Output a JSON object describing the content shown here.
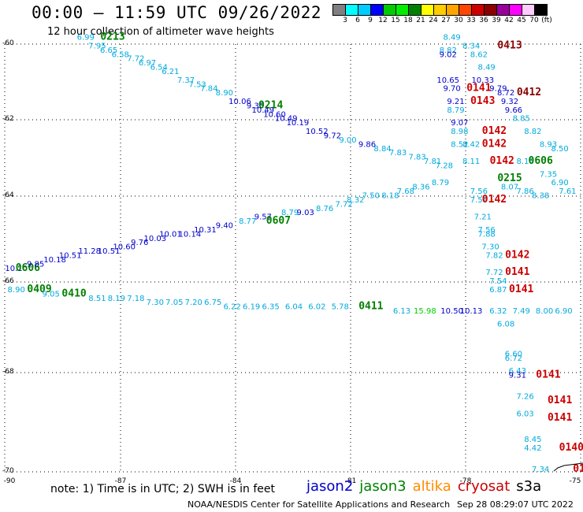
{
  "title": "00:00 – 11:59 UTC 09/26/2022",
  "subtitle": "12 hour collection of altimeter wave heights",
  "legend": {
    "colors": [
      "#808080",
      "#00ffff",
      "#00ccff",
      "#0000ff",
      "#00cc00",
      "#00ee00",
      "#008000",
      "#ffff00",
      "#ffcc00",
      "#ffa500",
      "#ff4500",
      "#cc0000",
      "#8b0000",
      "#990099",
      "#ff00ff",
      "#ffccff",
      "#000000"
    ],
    "labels": [
      "3",
      "6",
      "9",
      "12",
      "15",
      "18",
      "21",
      "24",
      "27",
      "30",
      "33",
      "36",
      "39",
      "42",
      "45",
      "70",
      "(ft)"
    ]
  },
  "axes": {
    "y_labels": [
      "-60",
      "-62",
      "-64",
      "-66",
      "-68",
      "-70"
    ],
    "x_labels": [
      "-90",
      "-87",
      "-84",
      "-81",
      "-78",
      "-75"
    ]
  },
  "note": "note: 1) Time is in UTC; 2) SWH is in feet",
  "satellites": [
    {
      "name": "jason2",
      "color": "#0000cc"
    },
    {
      "name": "jason3",
      "color": "#008000"
    },
    {
      "name": "altika",
      "color": "#ff8c00"
    },
    {
      "name": "cryosat",
      "color": "#cc0000"
    },
    {
      "name": "s3a",
      "color": "#000000"
    }
  ],
  "credit": "NOAA/NESDIS Center for Satellite Applications and Research",
  "credit_date": "Sep 28 08:29:07 UTC 2022",
  "observations": [
    {
      "text": "6.99",
      "lon": -87.9,
      "lat": -59.9,
      "color": "#00aadd"
    },
    {
      "text": "0213",
      "lon": -87.2,
      "lat": -59.9,
      "color": "#008000",
      "bold": true
    },
    {
      "text": "7.95",
      "lon": -87.6,
      "lat": -60.1,
      "color": "#00aadd"
    },
    {
      "text": "6.65",
      "lon": -87.3,
      "lat": -60.2,
      "color": "#00aadd"
    },
    {
      "text": "6.58",
      "lon": -87.0,
      "lat": -60.3,
      "color": "#00aadd"
    },
    {
      "text": "7.72",
      "lon": -86.6,
      "lat": -60.4,
      "color": "#00aadd"
    },
    {
      "text": "6.97",
      "lon": -86.3,
      "lat": -60.5,
      "color": "#00aadd"
    },
    {
      "text": "6.54",
      "lon": -86.0,
      "lat": -60.6,
      "color": "#00aadd"
    },
    {
      "text": "6.21",
      "lon": -85.7,
      "lat": -60.7,
      "color": "#00aadd"
    },
    {
      "text": "7.37",
      "lon": -85.3,
      "lat": -60.9,
      "color": "#00aadd"
    },
    {
      "text": "7.53",
      "lon": -85.0,
      "lat": -61.0,
      "color": "#00aadd"
    },
    {
      "text": "7.84",
      "lon": -84.7,
      "lat": -61.1,
      "color": "#00aadd"
    },
    {
      "text": "8.90",
      "lon": -84.3,
      "lat": -61.2,
      "color": "#00aadd"
    },
    {
      "text": "10.06",
      "lon": -83.9,
      "lat": -61.4,
      "color": "#0000cc"
    },
    {
      "text": "9.35",
      "lon": -83.5,
      "lat": -61.5,
      "color": "#0000cc"
    },
    {
      "text": "0214",
      "lon": -83.1,
      "lat": -61.5,
      "color": "#008000",
      "bold": true
    },
    {
      "text": "10.49",
      "lon": -83.3,
      "lat": -61.6,
      "color": "#0000cc"
    },
    {
      "text": "10.60",
      "lon": -83.0,
      "lat": -61.7,
      "color": "#0000cc"
    },
    {
      "text": "10.49",
      "lon": -82.7,
      "lat": -61.8,
      "color": "#0000cc"
    },
    {
      "text": "10.19",
      "lon": -82.4,
      "lat": -61.9,
      "color": "#0000cc"
    },
    {
      "text": "10.52",
      "lon": -81.9,
      "lat": -62.1,
      "color": "#0000cc"
    },
    {
      "text": "9.72",
      "lon": -81.5,
      "lat": -62.2,
      "color": "#0000cc"
    },
    {
      "text": "9.00",
      "lon": -81.1,
      "lat": -62.3,
      "color": "#00aadd"
    },
    {
      "text": "9.86",
      "lon": -80.6,
      "lat": -62.4,
      "color": "#0000cc"
    },
    {
      "text": "8.84",
      "lon": -80.2,
      "lat": -62.5,
      "color": "#00aadd"
    },
    {
      "text": "7.83",
      "lon": -79.8,
      "lat": -62.6,
      "color": "#00aadd"
    },
    {
      "text": "7.83",
      "lon": -79.3,
      "lat": -62.7,
      "color": "#00aadd"
    },
    {
      "text": "7.81",
      "lon": -78.9,
      "lat": -62.8,
      "color": "#00aadd"
    },
    {
      "text": "7.28",
      "lon": -78.6,
      "lat": -62.9,
      "color": "#00aadd"
    },
    {
      "text": "8.49",
      "lon": -78.4,
      "lat": -59.9,
      "color": "#00aadd"
    },
    {
      "text": "8.82",
      "lon": -78.5,
      "lat": -60.2,
      "color": "#00aadd"
    },
    {
      "text": "9.02",
      "lon": -78.5,
      "lat": -60.3,
      "color": "#0000cc"
    },
    {
      "text": "8.34",
      "lon": -77.9,
      "lat": -60.1,
      "color": "#00aadd"
    },
    {
      "text": "0413",
      "lon": -76.9,
      "lat": -60.1,
      "color": "#8b0000",
      "bold": true
    },
    {
      "text": "8.62",
      "lon": -77.7,
      "lat": -60.3,
      "color": "#00aadd"
    },
    {
      "text": "8.49",
      "lon": -77.5,
      "lat": -60.6,
      "color": "#00aadd"
    },
    {
      "text": "10.65",
      "lon": -78.5,
      "lat": -60.9,
      "color": "#0000cc"
    },
    {
      "text": "10.33",
      "lon": -77.6,
      "lat": -60.9,
      "color": "#0000cc"
    },
    {
      "text": "9.70",
      "lon": -78.4,
      "lat": -61.1,
      "color": "#0000cc"
    },
    {
      "text": "0141",
      "lon": -77.7,
      "lat": -61.1,
      "color": "#cc0000",
      "bold": true
    },
    {
      "text": "9.79",
      "lon": -77.2,
      "lat": -61.1,
      "color": "#0000cc"
    },
    {
      "text": "8.72",
      "lon": -77.0,
      "lat": -61.2,
      "color": "#0000cc"
    },
    {
      "text": "0412",
      "lon": -76.4,
      "lat": -61.2,
      "color": "#8b0000",
      "bold": true
    },
    {
      "text": "9.21",
      "lon": -78.3,
      "lat": -61.4,
      "color": "#0000cc"
    },
    {
      "text": "0143",
      "lon": -77.6,
      "lat": -61.4,
      "color": "#cc0000",
      "bold": true
    },
    {
      "text": "9.32",
      "lon": -76.9,
      "lat": -61.4,
      "color": "#0000cc"
    },
    {
      "text": "8.79",
      "lon": -78.3,
      "lat": -61.6,
      "color": "#00aadd"
    },
    {
      "text": "9.66",
      "lon": -76.8,
      "lat": -61.6,
      "color": "#0000cc"
    },
    {
      "text": "8.85",
      "lon": -76.6,
      "lat": -61.8,
      "color": "#00aadd"
    },
    {
      "text": "9.07",
      "lon": -78.2,
      "lat": -61.9,
      "color": "#0000cc"
    },
    {
      "text": "8.98",
      "lon": -78.2,
      "lat": -62.1,
      "color": "#00aadd"
    },
    {
      "text": "0142",
      "lon": -77.3,
      "lat": -62.1,
      "color": "#cc0000",
      "bold": true
    },
    {
      "text": "8.82",
      "lon": -76.3,
      "lat": -62.1,
      "color": "#00aadd"
    },
    {
      "text": "8.52",
      "lon": -78.2,
      "lat": -62.4,
      "color": "#00aadd"
    },
    {
      "text": "8.42",
      "lon": -77.9,
      "lat": -62.4,
      "color": "#00aadd"
    },
    {
      "text": "0142",
      "lon": -77.3,
      "lat": -62.4,
      "color": "#cc0000",
      "bold": true
    },
    {
      "text": "8.93",
      "lon": -75.9,
      "lat": -62.4,
      "color": "#00aadd"
    },
    {
      "text": "8.50",
      "lon": -75.6,
      "lat": -62.5,
      "color": "#00aadd"
    },
    {
      "text": "8.11",
      "lon": -77.9,
      "lat": -62.8,
      "color": "#00aadd"
    },
    {
      "text": "0142",
      "lon": -77.1,
      "lat": -62.8,
      "color": "#cc0000",
      "bold": true
    },
    {
      "text": "8.16",
      "lon": -76.5,
      "lat": -62.8,
      "color": "#00aadd"
    },
    {
      "text": "0606",
      "lon": -76.1,
      "lat": -62.8,
      "color": "#008000",
      "bold": true
    },
    {
      "text": "7.35",
      "lon": -75.9,
      "lat": -63.1,
      "color": "#00aadd"
    },
    {
      "text": "0215",
      "lon": -76.9,
      "lat": -63.2,
      "color": "#008000",
      "bold": true
    },
    {
      "text": "6.90",
      "lon": -75.6,
      "lat": -63.3,
      "color": "#00aadd"
    },
    {
      "text": "7.56",
      "lon": -77.7,
      "lat": -63.5,
      "color": "#00aadd"
    },
    {
      "text": "8.07",
      "lon": -76.9,
      "lat": -63.4,
      "color": "#00aadd"
    },
    {
      "text": "7.86",
      "lon": -76.5,
      "lat": -63.5,
      "color": "#00aadd"
    },
    {
      "text": "8.38",
      "lon": -76.1,
      "lat": -63.6,
      "color": "#00aadd"
    },
    {
      "text": "7.61",
      "lon": -75.4,
      "lat": -63.5,
      "color": "#00aadd"
    },
    {
      "text": "7.59",
      "lon": -77.7,
      "lat": -63.7,
      "color": "#00aadd"
    },
    {
      "text": "0142",
      "lon": -77.3,
      "lat": -63.7,
      "color": "#cc0000",
      "bold": true
    },
    {
      "text": "7.21",
      "lon": -77.6,
      "lat": -64.1,
      "color": "#00aadd"
    },
    {
      "text": "7.56",
      "lon": -77.5,
      "lat": -64.4,
      "color": "#00aadd"
    },
    {
      "text": "7.88",
      "lon": -77.5,
      "lat": -64.5,
      "color": "#00aadd"
    },
    {
      "text": "7.30",
      "lon": -77.4,
      "lat": -64.8,
      "color": "#00aadd"
    },
    {
      "text": "7.82",
      "lon": -77.3,
      "lat": -65.0,
      "color": "#00aadd"
    },
    {
      "text": "0142",
      "lon": -76.7,
      "lat": -65.0,
      "color": "#cc0000",
      "bold": true
    },
    {
      "text": "7.72",
      "lon": -77.3,
      "lat": -65.4,
      "color": "#00aadd"
    },
    {
      "text": "0141",
      "lon": -76.7,
      "lat": -65.4,
      "color": "#cc0000",
      "bold": true
    },
    {
      "text": "7.54",
      "lon": -77.2,
      "lat": -65.6,
      "color": "#00aadd"
    },
    {
      "text": "6.87",
      "lon": -77.2,
      "lat": -65.8,
      "color": "#00aadd"
    },
    {
      "text": "0141",
      "lon": -76.6,
      "lat": -65.8,
      "color": "#cc0000",
      "bold": true
    },
    {
      "text": "10.10",
      "lon": -89.7,
      "lat": -65.3,
      "color": "#0000cc"
    },
    {
      "text": "0606",
      "lon": -89.4,
      "lat": -65.3,
      "color": "#008000",
      "bold": true
    },
    {
      "text": "9.85",
      "lon": -89.2,
      "lat": -65.2,
      "color": "#0000cc"
    },
    {
      "text": "10.18",
      "lon": -88.7,
      "lat": -65.1,
      "color": "#0000cc"
    },
    {
      "text": "10.51",
      "lon": -88.3,
      "lat": -65.0,
      "color": "#0000cc"
    },
    {
      "text": "11.28",
      "lon": -87.8,
      "lat": -64.9,
      "color": "#0000cc"
    },
    {
      "text": "10.51",
      "lon": -87.3,
      "lat": -64.9,
      "color": "#0000cc"
    },
    {
      "text": "10.60",
      "lon": -86.9,
      "lat": -64.8,
      "color": "#0000cc"
    },
    {
      "text": "9.76",
      "lon": -86.5,
      "lat": -64.7,
      "color": "#0000cc"
    },
    {
      "text": "10.03",
      "lon": -86.1,
      "lat": -64.6,
      "color": "#0000cc"
    },
    {
      "text": "10.01",
      "lon": -85.7,
      "lat": -64.5,
      "color": "#0000cc"
    },
    {
      "text": "10.14",
      "lon": -85.2,
      "lat": -64.5,
      "color": "#0000cc"
    },
    {
      "text": "10.31",
      "lon": -84.8,
      "lat": -64.4,
      "color": "#0000cc"
    },
    {
      "text": "9.40",
      "lon": -84.3,
      "lat": -64.3,
      "color": "#0000cc"
    },
    {
      "text": "8.77",
      "lon": -83.7,
      "lat": -64.2,
      "color": "#00aadd"
    },
    {
      "text": "9.57",
      "lon": -83.3,
      "lat": -64.1,
      "color": "#0000cc"
    },
    {
      "text": "0607",
      "lon": -82.9,
      "lat": -64.2,
      "color": "#008000",
      "bold": true
    },
    {
      "text": "8.79",
      "lon": -82.6,
      "lat": -64.0,
      "color": "#00aadd"
    },
    {
      "text": "9.03",
      "lon": -82.2,
      "lat": -64.0,
      "color": "#0000cc"
    },
    {
      "text": "8.76",
      "lon": -81.7,
      "lat": -63.9,
      "color": "#00aadd"
    },
    {
      "text": "7.72",
      "lon": -81.2,
      "lat": -63.8,
      "color": "#00aadd"
    },
    {
      "text": "8.32",
      "lon": -80.9,
      "lat": -63.7,
      "color": "#00aadd"
    },
    {
      "text": "7.50",
      "lon": -80.5,
      "lat": -63.6,
      "color": "#00aadd"
    },
    {
      "text": "8.18",
      "lon": -80.0,
      "lat": -63.6,
      "color": "#00aadd"
    },
    {
      "text": "7.68",
      "lon": -79.6,
      "lat": -63.5,
      "color": "#00aadd"
    },
    {
      "text": "8.36",
      "lon": -79.2,
      "lat": -63.4,
      "color": "#00aadd"
    },
    {
      "text": "8.79",
      "lon": -78.7,
      "lat": -63.3,
      "color": "#00aadd"
    },
    {
      "text": "8.90",
      "lon": -89.7,
      "lat": -65.8,
      "color": "#00aadd"
    },
    {
      "text": "0409",
      "lon": -89.1,
      "lat": -65.8,
      "color": "#008000",
      "bold": true
    },
    {
      "text": "9.05",
      "lon": -88.8,
      "lat": -65.9,
      "color": "#00aadd"
    },
    {
      "text": "0410",
      "lon": -88.2,
      "lat": -65.9,
      "color": "#008000",
      "bold": true
    },
    {
      "text": "8.51",
      "lon": -87.6,
      "lat": -66.0,
      "color": "#00aadd"
    },
    {
      "text": "8.19",
      "lon": -87.1,
      "lat": -66.0,
      "color": "#00aadd"
    },
    {
      "text": "7.18",
      "lon": -86.6,
      "lat": -66.0,
      "color": "#00aadd"
    },
    {
      "text": "7.30",
      "lon": -86.1,
      "lat": -66.1,
      "color": "#00aadd"
    },
    {
      "text": "7.05",
      "lon": -85.6,
      "lat": -66.1,
      "color": "#00aadd"
    },
    {
      "text": "7.20",
      "lon": -85.1,
      "lat": -66.1,
      "color": "#00aadd"
    },
    {
      "text": "6.75",
      "lon": -84.6,
      "lat": -66.1,
      "color": "#00aadd"
    },
    {
      "text": "6.22",
      "lon": -84.1,
      "lat": -66.2,
      "color": "#00aadd"
    },
    {
      "text": "6.19",
      "lon": -83.6,
      "lat": -66.2,
      "color": "#00aadd"
    },
    {
      "text": "6.35",
      "lon": -83.1,
      "lat": -66.2,
      "color": "#00aadd"
    },
    {
      "text": "6.04",
      "lon": -82.5,
      "lat": -66.2,
      "color": "#00aadd"
    },
    {
      "text": "6.02",
      "lon": -81.9,
      "lat": -66.2,
      "color": "#00aadd"
    },
    {
      "text": "5.78",
      "lon": -81.3,
      "lat": -66.2,
      "color": "#00aadd"
    },
    {
      "text": "0411",
      "lon": -80.5,
      "lat": -66.2,
      "color": "#008000",
      "bold": true
    },
    {
      "text": "6.13",
      "lon": -79.7,
      "lat": -66.3,
      "color": "#00aadd"
    },
    {
      "text": "15.98",
      "lon": -79.1,
      "lat": -66.3,
      "color": "#00cc00"
    },
    {
      "text": "10.50",
      "lon": -78.4,
      "lat": -66.3,
      "color": "#0000cc"
    },
    {
      "text": "10.13",
      "lon": -77.9,
      "lat": -66.3,
      "color": "#0000cc"
    },
    {
      "text": "6.32",
      "lon": -77.2,
      "lat": -66.3,
      "color": "#00aadd"
    },
    {
      "text": "7.49",
      "lon": -76.6,
      "lat": -66.3,
      "color": "#00aadd"
    },
    {
      "text": "8.00",
      "lon": -76.0,
      "lat": -66.3,
      "color": "#00aadd"
    },
    {
      "text": "6.90",
      "lon": -75.5,
      "lat": -66.3,
      "color": "#00aadd"
    },
    {
      "text": "6.08",
      "lon": -77.0,
      "lat": -66.6,
      "color": "#00aadd"
    },
    {
      "text": "6.60",
      "lon": -76.8,
      "lat": -67.3,
      "color": "#00aadd"
    },
    {
      "text": "6.72",
      "lon": -76.8,
      "lat": -67.4,
      "color": "#00aadd"
    },
    {
      "text": "6.43",
      "lon": -76.7,
      "lat": -67.7,
      "color": "#00aadd"
    },
    {
      "text": "9.31",
      "lon": -76.7,
      "lat": -67.8,
      "color": "#0000cc"
    },
    {
      "text": "0141",
      "lon": -75.9,
      "lat": -67.8,
      "color": "#cc0000",
      "bold": true
    },
    {
      "text": "7.26",
      "lon": -76.5,
      "lat": -68.3,
      "color": "#00aadd"
    },
    {
      "text": "0141",
      "lon": -75.6,
      "lat": -68.4,
      "color": "#cc0000",
      "bold": true
    },
    {
      "text": "6.03",
      "lon": -76.5,
      "lat": -68.7,
      "color": "#00aadd"
    },
    {
      "text": "0141",
      "lon": -75.6,
      "lat": -68.8,
      "color": "#cc0000",
      "bold": true
    },
    {
      "text": "8.45",
      "lon": -76.3,
      "lat": -69.3,
      "color": "#00aadd"
    },
    {
      "text": "4.42",
      "lon": -76.3,
      "lat": -69.5,
      "color": "#00aadd"
    },
    {
      "text": "0140",
      "lon": -75.3,
      "lat": -69.5,
      "color": "#cc0000",
      "bold": true
    },
    {
      "text": "7.34",
      "lon": -76.1,
      "lat": -70.0,
      "color": "#00aadd"
    },
    {
      "text": "01",
      "lon": -75.1,
      "lat": -70.0,
      "color": "#cc0000",
      "bold": true
    }
  ]
}
